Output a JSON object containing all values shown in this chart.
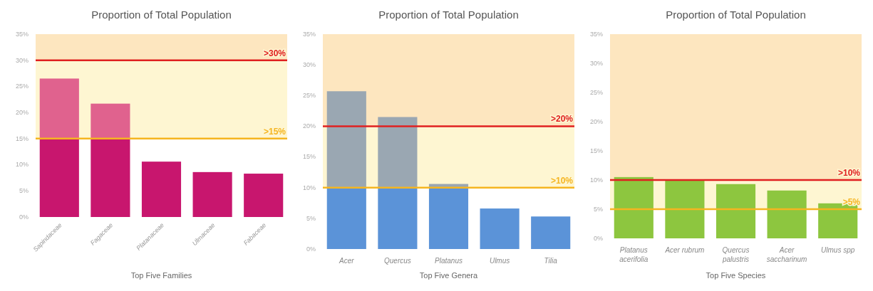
{
  "chart_data": [
    {
      "type": "bar",
      "title": "Proportion of Total Population",
      "xlabel": "Top Five Families",
      "categories": [
        "Sapindaceae",
        "Fagaceae",
        "Platanaceae",
        "Ulmaceae",
        "Fabaceae"
      ],
      "stacked": true,
      "series": [
        {
          "color": "#c8166e",
          "values": [
            15,
            15,
            10.6,
            8.6,
            8.3
          ]
        },
        {
          "color": "#e0628e",
          "values": [
            11.5,
            6.7,
            null,
            null,
            null
          ]
        }
      ],
      "ylim": [
        0,
        35
      ],
      "yticks": [
        {
          "value": 0,
          "label": "0%"
        },
        {
          "value": 5,
          "label": "5%"
        },
        {
          "value": 10,
          "label": "10%"
        },
        {
          "value": 15,
          "label": "15%"
        },
        {
          "value": 20,
          "label": "20%"
        },
        {
          "value": 25,
          "label": "25%"
        },
        {
          "value": 30,
          "label": "30%"
        },
        {
          "value": 35,
          "label": "35%"
        }
      ],
      "bands": [
        {
          "axis": "y",
          "from": 30,
          "to": 35,
          "color": "#fde6bf"
        },
        {
          "axis": "y",
          "from": 15,
          "to": 30,
          "color": "#fef6d2"
        }
      ],
      "ref_lines": [
        {
          "axis": "y",
          "value": 30,
          "label": ">30%",
          "color": "#e02020"
        },
        {
          "axis": "y",
          "value": 15,
          "label": ">15%",
          "color": "#f5b520"
        }
      ]
    },
    {
      "type": "bar",
      "title": "Proportion of Total Population",
      "xlabel": "Top Five Genera",
      "categories": [
        "Acer",
        "Quercus",
        "Platanus",
        "Ulmus",
        "Tilia"
      ],
      "stacked": true,
      "series": [
        {
          "color": "#5b93d8",
          "values": [
            10,
            10,
            10,
            6.6,
            5.3
          ]
        },
        {
          "color": "#9aa7b2",
          "values": [
            15.7,
            11.5,
            0.6,
            null,
            null
          ]
        }
      ],
      "ylim": [
        0,
        35
      ],
      "yticks": [
        {
          "value": 0,
          "label": "0%"
        },
        {
          "value": 5,
          "label": "5%"
        },
        {
          "value": 10,
          "label": "10%"
        },
        {
          "value": 15,
          "label": "15%"
        },
        {
          "value": 20,
          "label": "20%"
        },
        {
          "value": 25,
          "label": "25%"
        },
        {
          "value": 30,
          "label": "30%"
        },
        {
          "value": 35,
          "label": "35%"
        }
      ],
      "bands": [
        {
          "axis": "y",
          "from": 20,
          "to": 35,
          "color": "#fde6bf"
        },
        {
          "axis": "y",
          "from": 10,
          "to": 20,
          "color": "#fef6d2"
        }
      ],
      "ref_lines": [
        {
          "axis": "y",
          "value": 20,
          "label": ">20%",
          "color": "#e02020"
        },
        {
          "axis": "y",
          "value": 10,
          "label": ">10%",
          "color": "#f5b520"
        }
      ]
    },
    {
      "type": "bar",
      "title": "Proportion of Total Population",
      "xlabel": "Top Five Species",
      "categories": [
        "Platanus acerifolia",
        "Acer rubrum",
        "Quercus palustris",
        "Acer saccharinum",
        "Ulmus spp"
      ],
      "series": [
        {
          "color": "#8dc63f",
          "values": [
            10.5,
            10,
            9.3,
            8.2,
            6
          ]
        }
      ],
      "ylim": [
        0,
        35
      ],
      "yticks": [
        {
          "value": 0,
          "label": "0%"
        },
        {
          "value": 5,
          "label": "5%"
        },
        {
          "value": 10,
          "label": "10%"
        },
        {
          "value": 15,
          "label": "15%"
        },
        {
          "value": 20,
          "label": "20%"
        },
        {
          "value": 25,
          "label": "25%"
        },
        {
          "value": 30,
          "label": "30%"
        },
        {
          "value": 35,
          "label": "35%"
        }
      ],
      "bands": [
        {
          "axis": "y",
          "from": 10,
          "to": 35,
          "color": "#fde6bf"
        },
        {
          "axis": "y",
          "from": 5,
          "to": 10,
          "color": "#fef6d2"
        }
      ],
      "ref_lines": [
        {
          "axis": "y",
          "value": 10,
          "label": ">10%",
          "color": "#e02020"
        },
        {
          "axis": "y",
          "value": 5,
          "label": ">5%",
          "color": "#f5b520"
        }
      ]
    }
  ]
}
